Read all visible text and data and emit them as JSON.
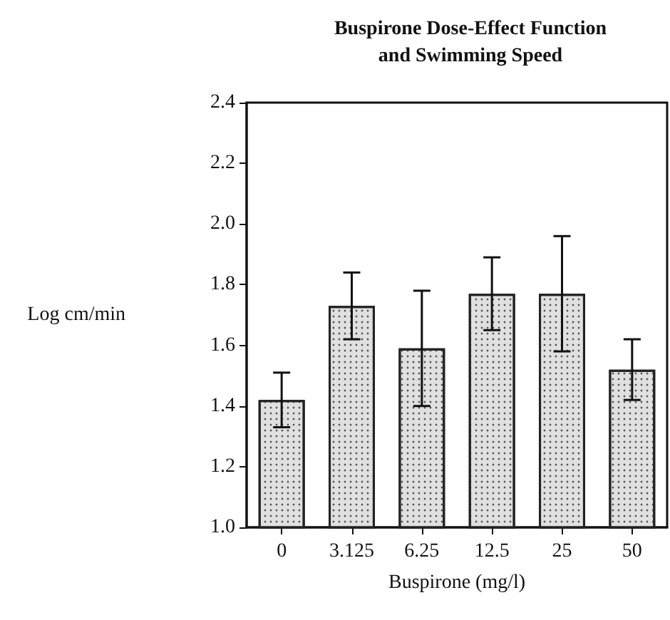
{
  "chart_data": {
    "type": "bar",
    "title": "Buspirone Dose-Effect Function\nand Swimming Speed",
    "xlabel": "Buspirone (mg/l)",
    "ylabel": "Log cm/min",
    "categories": [
      "0",
      "3.125",
      "6.25",
      "12.5",
      "25",
      "50"
    ],
    "values": [
      1.42,
      1.73,
      1.59,
      1.77,
      1.77,
      1.52
    ],
    "errors": [
      0.09,
      0.11,
      0.19,
      0.12,
      0.19,
      0.1
    ],
    "color": "#e0e0e0",
    "ylim": [
      1.0,
      2.4
    ],
    "yticks": [
      {
        "value": 1.0,
        "label": "1.0"
      },
      1.2,
      1.4,
      1.6,
      1.8,
      {
        "value": 2.0,
        "label": "2.0"
      },
      2.2,
      2.4
    ],
    "grid": false
  }
}
